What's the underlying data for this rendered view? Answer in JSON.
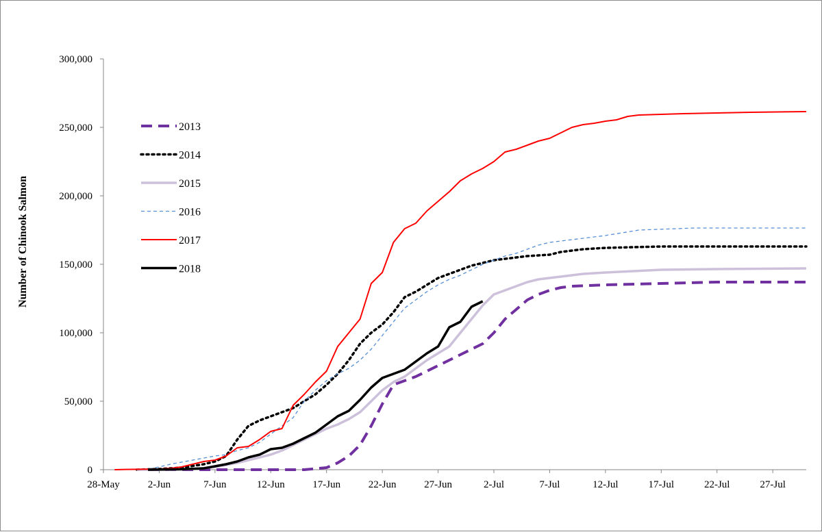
{
  "chart_data": {
    "type": "line",
    "title": "",
    "xlabel": "",
    "ylabel": "Number of Chinook Salmon",
    "ylim": [
      0,
      300000
    ],
    "yticks": [
      0,
      50000,
      100000,
      150000,
      200000,
      250000,
      300000
    ],
    "ytick_labels": [
      "0",
      "50,000",
      "100,000",
      "150,000",
      "200,000",
      "250,000",
      "300,000"
    ],
    "x_start": "28-May",
    "x_end": "30-Jul",
    "xtick_labels": [
      "28-May",
      "2-Jun",
      "7-Jun",
      "12-Jun",
      "17-Jun",
      "22-Jun",
      "27-Jun",
      "2-Jul",
      "7-Jul",
      "12-Jul",
      "17-Jul",
      "22-Jul",
      "27-Jul"
    ],
    "grid": false,
    "legend_position": "left",
    "series": [
      {
        "name": "2013",
        "color": "#7030a0",
        "style": "dashed-thick",
        "points": [
          [
            "1-Jun",
            0
          ],
          [
            "10-Jun",
            0
          ],
          [
            "15-Jun",
            0
          ],
          [
            "17-Jun",
            1500
          ],
          [
            "18-Jun",
            5000
          ],
          [
            "19-Jun",
            10000
          ],
          [
            "20-Jun",
            18000
          ],
          [
            "21-Jun",
            32000
          ],
          [
            "22-Jun",
            48000
          ],
          [
            "23-Jun",
            62000
          ],
          [
            "24-Jun",
            65000
          ],
          [
            "25-Jun",
            68000
          ],
          [
            "26-Jun",
            72000
          ],
          [
            "27-Jun",
            76000
          ],
          [
            "28-Jun",
            80000
          ],
          [
            "29-Jun",
            84000
          ],
          [
            "30-Jun",
            88000
          ],
          [
            "1-Jul",
            92000
          ],
          [
            "2-Jul",
            100000
          ],
          [
            "3-Jul",
            110000
          ],
          [
            "4-Jul",
            117000
          ],
          [
            "5-Jul",
            124000
          ],
          [
            "6-Jul",
            128000
          ],
          [
            "7-Jul",
            131000
          ],
          [
            "8-Jul",
            133000
          ],
          [
            "9-Jul",
            134000
          ],
          [
            "12-Jul",
            135000
          ],
          [
            "17-Jul",
            136000
          ],
          [
            "22-Jul",
            137000
          ],
          [
            "30-Jul",
            137000
          ]
        ]
      },
      {
        "name": "2014",
        "color": "#000000",
        "style": "dotted",
        "points": [
          [
            "31-May",
            0
          ],
          [
            "2-Jun",
            500
          ],
          [
            "4-Jun",
            1500
          ],
          [
            "6-Jun",
            4000
          ],
          [
            "7-Jun",
            6000
          ],
          [
            "8-Jun",
            10000
          ],
          [
            "9-Jun",
            22000
          ],
          [
            "10-Jun",
            32000
          ],
          [
            "11-Jun",
            36000
          ],
          [
            "12-Jun",
            39000
          ],
          [
            "13-Jun",
            42000
          ],
          [
            "14-Jun",
            45000
          ],
          [
            "15-Jun",
            50000
          ],
          [
            "16-Jun",
            55000
          ],
          [
            "17-Jun",
            62000
          ],
          [
            "18-Jun",
            70000
          ],
          [
            "19-Jun",
            80000
          ],
          [
            "20-Jun",
            92000
          ],
          [
            "21-Jun",
            100000
          ],
          [
            "22-Jun",
            106000
          ],
          [
            "23-Jun",
            115000
          ],
          [
            "24-Jun",
            126000
          ],
          [
            "25-Jun",
            130000
          ],
          [
            "26-Jun",
            135000
          ],
          [
            "27-Jun",
            140000
          ],
          [
            "28-Jun",
            143000
          ],
          [
            "29-Jun",
            146000
          ],
          [
            "30-Jun",
            149000
          ],
          [
            "1-Jul",
            151000
          ],
          [
            "2-Jul",
            153000
          ],
          [
            "3-Jul",
            154000
          ],
          [
            "5-Jul",
            156000
          ],
          [
            "7-Jul",
            157000
          ],
          [
            "8-Jul",
            159000
          ],
          [
            "10-Jul",
            161000
          ],
          [
            "12-Jul",
            162000
          ],
          [
            "17-Jul",
            163000
          ],
          [
            "22-Jul",
            163000
          ],
          [
            "30-Jul",
            163000
          ]
        ]
      },
      {
        "name": "2015",
        "color": "#ccc0da",
        "style": "solid-thick",
        "points": [
          [
            "31-May",
            0
          ],
          [
            "3-Jun",
            0
          ],
          [
            "5-Jun",
            500
          ],
          [
            "7-Jun",
            2000
          ],
          [
            "9-Jun",
            5000
          ],
          [
            "11-Jun",
            9000
          ],
          [
            "12-Jun",
            11000
          ],
          [
            "13-Jun",
            14000
          ],
          [
            "14-Jun",
            18000
          ],
          [
            "15-Jun",
            22000
          ],
          [
            "16-Jun",
            26000
          ],
          [
            "17-Jun",
            30000
          ],
          [
            "18-Jun",
            33000
          ],
          [
            "19-Jun",
            37000
          ],
          [
            "20-Jun",
            42000
          ],
          [
            "21-Jun",
            50000
          ],
          [
            "22-Jun",
            58000
          ],
          [
            "23-Jun",
            64000
          ],
          [
            "24-Jun",
            68000
          ],
          [
            "25-Jun",
            74000
          ],
          [
            "26-Jun",
            80000
          ],
          [
            "27-Jun",
            85000
          ],
          [
            "28-Jun",
            90000
          ],
          [
            "29-Jun",
            100000
          ],
          [
            "30-Jun",
            110000
          ],
          [
            "1-Jul",
            120000
          ],
          [
            "2-Jul",
            128000
          ],
          [
            "3-Jul",
            131000
          ],
          [
            "4-Jul",
            134000
          ],
          [
            "5-Jul",
            137000
          ],
          [
            "6-Jul",
            139000
          ],
          [
            "8-Jul",
            141000
          ],
          [
            "10-Jul",
            143000
          ],
          [
            "12-Jul",
            144000
          ],
          [
            "17-Jul",
            146000
          ],
          [
            "22-Jul",
            146500
          ],
          [
            "30-Jul",
            147000
          ]
        ]
      },
      {
        "name": "2016",
        "color": "#558ed5",
        "style": "dashed-thin",
        "points": [
          [
            "31-May",
            0
          ],
          [
            "1-Jun",
            500
          ],
          [
            "2-Jun",
            2000
          ],
          [
            "3-Jun",
            4000
          ],
          [
            "4-Jun",
            5500
          ],
          [
            "5-Jun",
            7000
          ],
          [
            "6-Jun",
            8500
          ],
          [
            "7-Jun",
            10000
          ],
          [
            "8-Jun",
            11000
          ],
          [
            "9-Jun",
            14000
          ],
          [
            "10-Jun",
            16000
          ],
          [
            "11-Jun",
            20000
          ],
          [
            "12-Jun",
            26000
          ],
          [
            "13-Jun",
            32000
          ],
          [
            "14-Jun",
            38000
          ],
          [
            "15-Jun",
            50000
          ],
          [
            "16-Jun",
            58000
          ],
          [
            "17-Jun",
            65000
          ],
          [
            "18-Jun",
            70000
          ],
          [
            "19-Jun",
            74000
          ],
          [
            "20-Jun",
            80000
          ],
          [
            "21-Jun",
            88000
          ],
          [
            "22-Jun",
            98000
          ],
          [
            "23-Jun",
            108000
          ],
          [
            "24-Jun",
            118000
          ],
          [
            "25-Jun",
            124000
          ],
          [
            "26-Jun",
            130000
          ],
          [
            "27-Jun",
            135000
          ],
          [
            "28-Jun",
            139000
          ],
          [
            "29-Jun",
            142000
          ],
          [
            "30-Jun",
            146000
          ],
          [
            "1-Jul",
            150000
          ],
          [
            "2-Jul",
            153000
          ],
          [
            "3-Jul",
            156000
          ],
          [
            "4-Jul",
            158000
          ],
          [
            "5-Jul",
            161000
          ],
          [
            "6-Jul",
            164000
          ],
          [
            "7-Jul",
            166000
          ],
          [
            "9-Jul",
            168000
          ],
          [
            "12-Jul",
            171000
          ],
          [
            "15-Jul",
            175000
          ],
          [
            "20-Jul",
            176500
          ],
          [
            "25-Jul",
            176500
          ],
          [
            "30-Jul",
            176500
          ]
        ]
      },
      {
        "name": "2017",
        "color": "#ff0000",
        "style": "solid",
        "points": [
          [
            "29-May",
            0
          ],
          [
            "30-May",
            200
          ],
          [
            "2-Jun",
            500
          ],
          [
            "3-Jun",
            1000
          ],
          [
            "4-Jun",
            2000
          ],
          [
            "5-Jun",
            4000
          ],
          [
            "6-Jun",
            6000
          ],
          [
            "7-Jun",
            7000
          ],
          [
            "8-Jun",
            10000
          ],
          [
            "9-Jun",
            16000
          ],
          [
            "10-Jun",
            17000
          ],
          [
            "11-Jun",
            22000
          ],
          [
            "12-Jun",
            28000
          ],
          [
            "13-Jun",
            30000
          ],
          [
            "14-Jun",
            47000
          ],
          [
            "15-Jun",
            55000
          ],
          [
            "16-Jun",
            64000
          ],
          [
            "17-Jun",
            72000
          ],
          [
            "18-Jun",
            90000
          ],
          [
            "19-Jun",
            100000
          ],
          [
            "20-Jun",
            110000
          ],
          [
            "21-Jun",
            136000
          ],
          [
            "22-Jun",
            144000
          ],
          [
            "23-Jun",
            166000
          ],
          [
            "24-Jun",
            176000
          ],
          [
            "25-Jun",
            180000
          ],
          [
            "26-Jun",
            189000
          ],
          [
            "27-Jun",
            196000
          ],
          [
            "28-Jun",
            203000
          ],
          [
            "29-Jun",
            211000
          ],
          [
            "30-Jun",
            216000
          ],
          [
            "1-Jul",
            220000
          ],
          [
            "2-Jul",
            225000
          ],
          [
            "3-Jul",
            232000
          ],
          [
            "4-Jul",
            234000
          ],
          [
            "5-Jul",
            237000
          ],
          [
            "6-Jul",
            240000
          ],
          [
            "7-Jul",
            242000
          ],
          [
            "8-Jul",
            246000
          ],
          [
            "9-Jul",
            250000
          ],
          [
            "10-Jul",
            252000
          ],
          [
            "11-Jul",
            253000
          ],
          [
            "12-Jul",
            254500
          ],
          [
            "13-Jul",
            255500
          ],
          [
            "14-Jul",
            258000
          ],
          [
            "15-Jul",
            259000
          ],
          [
            "17-Jul",
            259500
          ],
          [
            "19-Jul",
            260000
          ],
          [
            "22-Jul",
            260500
          ],
          [
            "25-Jul",
            261000
          ],
          [
            "30-Jul",
            261500
          ]
        ]
      },
      {
        "name": "2018",
        "color": "#000000",
        "style": "solid-thick",
        "points": [
          [
            "1-Jun",
            0
          ],
          [
            "4-Jun",
            300
          ],
          [
            "6-Jun",
            1000
          ],
          [
            "7-Jun",
            2500
          ],
          [
            "8-Jun",
            4000
          ],
          [
            "9-Jun",
            6000
          ],
          [
            "10-Jun",
            9000
          ],
          [
            "11-Jun",
            11000
          ],
          [
            "12-Jun",
            15000
          ],
          [
            "13-Jun",
            16000
          ],
          [
            "14-Jun",
            19000
          ],
          [
            "15-Jun",
            23000
          ],
          [
            "16-Jun",
            27000
          ],
          [
            "17-Jun",
            33000
          ],
          [
            "18-Jun",
            39000
          ],
          [
            "19-Jun",
            43000
          ],
          [
            "20-Jun",
            51000
          ],
          [
            "21-Jun",
            60000
          ],
          [
            "22-Jun",
            67000
          ],
          [
            "23-Jun",
            70000
          ],
          [
            "24-Jun",
            73000
          ],
          [
            "25-Jun",
            79000
          ],
          [
            "26-Jun",
            85000
          ],
          [
            "27-Jun",
            90000
          ],
          [
            "28-Jun",
            104000
          ],
          [
            "29-Jun",
            108000
          ],
          [
            "30-Jun",
            119000
          ],
          [
            "1-Jul",
            123000
          ]
        ]
      }
    ]
  }
}
